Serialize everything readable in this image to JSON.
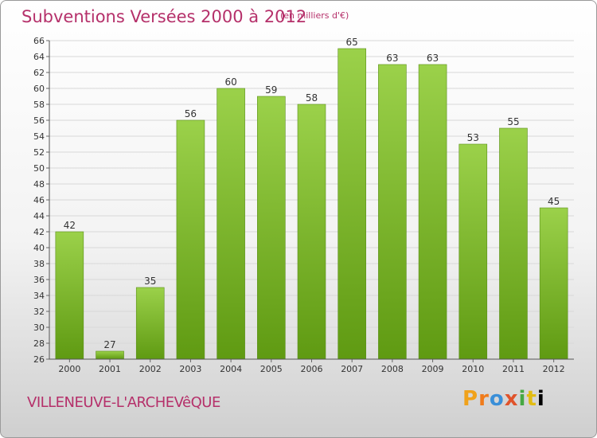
{
  "chart_data": {
    "type": "bar",
    "title": "Subventions Versées 2000 à 2012",
    "subtitle": "(en milliers d'€)",
    "categories": [
      "2000",
      "2001",
      "2002",
      "2003",
      "2004",
      "2005",
      "2006",
      "2007",
      "2008",
      "2009",
      "2010",
      "2011",
      "2012"
    ],
    "values": [
      42,
      27,
      35,
      56,
      60,
      59,
      58,
      65,
      63,
      63,
      53,
      55,
      45
    ],
    "ylim": [
      26,
      66
    ],
    "ytick_step": 2,
    "grid": true,
    "bar_color": "#7fbf30"
  },
  "location": "VILLENEUVE-L'ARCHEVêQUE",
  "logo": {
    "letters": [
      "P",
      "r",
      "o",
      "x",
      "i",
      "t",
      "i"
    ]
  }
}
